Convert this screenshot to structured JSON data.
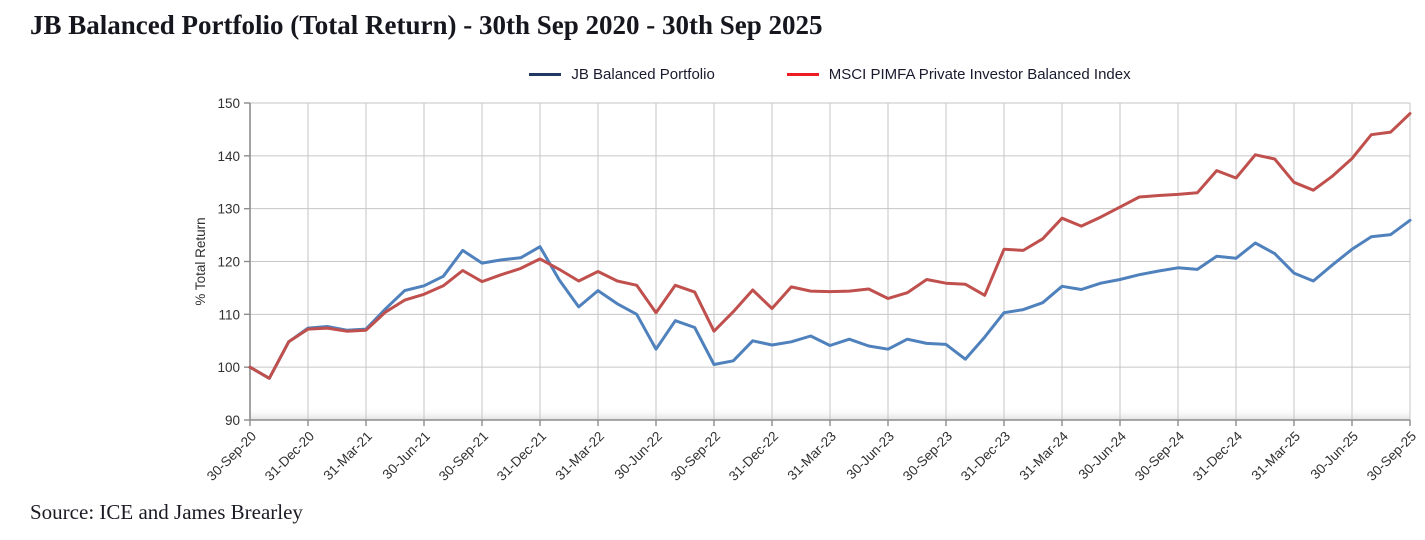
{
  "title": "JB Balanced Portfolio (Total Return) - 30th Sep 2020 - 30th Sep 2025",
  "source": "Source: ICE and James Brearley",
  "legend": [
    {
      "label": "JB Balanced Portfolio",
      "swatch_color": "#1F3864"
    },
    {
      "label": "MSCI PIMFA Private Investor Balanced Index",
      "swatch_color": "#ED1C24"
    }
  ],
  "colors": {
    "jb_line": "#4F81BD",
    "msci_line": "#C0504D",
    "gridline": "#C6C6C6",
    "axis": "#8C8C8C",
    "tick_text": "#303030",
    "title_text": "#16161E"
  },
  "chart_data": {
    "type": "line",
    "title": "JB Balanced Portfolio (Total Return) - 30th Sep 2020 - 30th Sep 2025",
    "xlabel": "",
    "ylabel": "% Total Return",
    "ylim": [
      90,
      150
    ],
    "ytick_step": 10,
    "grid": true,
    "legend_position": "top-center",
    "x_frequency": "monthly",
    "x_tick_every": 3,
    "x_tick_labels": [
      "30-Sep-20",
      "31-Dec-20",
      "31-Mar-21",
      "30-Jun-21",
      "30-Sep-21",
      "31-Dec-21",
      "31-Mar-22",
      "30-Jun-22",
      "30-Sep-22",
      "31-Dec-22",
      "31-Mar-23",
      "30-Jun-23",
      "30-Sep-23",
      "31-Dec-23",
      "31-Mar-24",
      "30-Jun-24",
      "30-Sep-24",
      "31-Dec-24",
      "31-Mar-25",
      "30-Jun-25",
      "30-Sep-25"
    ],
    "x": [
      "Sep-20",
      "Oct-20",
      "Nov-20",
      "Dec-20",
      "Jan-21",
      "Feb-21",
      "Mar-21",
      "Apr-21",
      "May-21",
      "Jun-21",
      "Jul-21",
      "Aug-21",
      "Sep-21",
      "Oct-21",
      "Nov-21",
      "Dec-21",
      "Jan-22",
      "Feb-22",
      "Mar-22",
      "Apr-22",
      "May-22",
      "Jun-22",
      "Jul-22",
      "Aug-22",
      "Sep-22",
      "Oct-22",
      "Nov-22",
      "Dec-22",
      "Jan-23",
      "Feb-23",
      "Mar-23",
      "Apr-23",
      "May-23",
      "Jun-23",
      "Jul-23",
      "Aug-23",
      "Sep-23",
      "Oct-23",
      "Nov-23",
      "Dec-23",
      "Jan-24",
      "Feb-24",
      "Mar-24",
      "Apr-24",
      "May-24",
      "Jun-24",
      "Jul-24",
      "Aug-24",
      "Sep-24",
      "Oct-24",
      "Nov-24",
      "Dec-24",
      "Jan-25",
      "Feb-25",
      "Mar-25",
      "Apr-25",
      "May-25",
      "Jun-25",
      "Jul-25",
      "Aug-25",
      "Sep-25"
    ],
    "series": [
      {
        "name": "JB Balanced Portfolio",
        "color": "#4F81BD",
        "values": [
          100.0,
          97.9,
          104.8,
          107.4,
          107.7,
          107.0,
          107.2,
          111.0,
          114.5,
          115.4,
          117.2,
          122.1,
          119.7,
          120.3,
          120.7,
          122.8,
          116.5,
          111.4,
          114.5,
          112.0,
          110.0,
          103.4,
          108.8,
          107.5,
          100.5,
          101.2,
          105.0,
          104.2,
          104.8,
          105.9,
          104.1,
          105.3,
          104.0,
          103.4,
          105.3,
          104.5,
          104.3,
          101.5,
          105.7,
          110.3,
          110.9,
          112.2,
          115.3,
          114.7,
          115.9,
          116.6,
          117.5,
          118.2,
          118.8,
          118.5,
          121.0,
          120.6,
          123.5,
          121.5,
          117.8,
          116.3,
          119.4,
          122.3,
          124.7,
          125.1,
          127.8
        ]
      },
      {
        "name": "MSCI PIMFA Private Investor Balanced Index",
        "color": "#C0504D",
        "values": [
          100.0,
          97.9,
          104.8,
          107.2,
          107.4,
          106.8,
          107.0,
          110.4,
          112.7,
          113.8,
          115.4,
          118.3,
          116.2,
          117.5,
          118.7,
          120.5,
          118.5,
          116.3,
          118.1,
          116.3,
          115.5,
          110.3,
          115.5,
          114.2,
          106.8,
          110.5,
          114.6,
          111.1,
          115.2,
          114.4,
          114.3,
          114.4,
          114.8,
          113.0,
          114.1,
          116.6,
          115.9,
          115.7,
          113.6,
          122.3,
          122.1,
          124.3,
          128.2,
          126.7,
          128.4,
          130.3,
          132.2,
          132.5,
          132.7,
          133.0,
          137.2,
          135.8,
          140.2,
          139.4,
          135.0,
          133.5,
          136.2,
          139.5,
          144.0,
          144.5,
          148.0
        ]
      }
    ]
  }
}
